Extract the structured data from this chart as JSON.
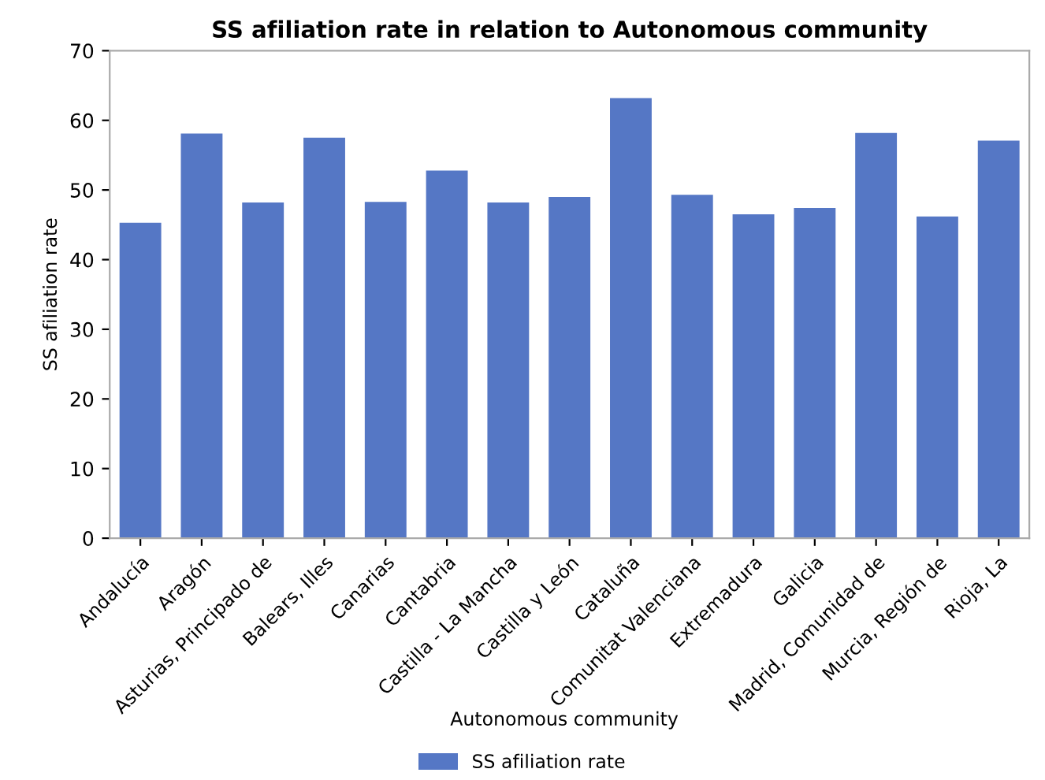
{
  "chart_data": {
    "type": "bar",
    "title": "SS afiliation rate in relation to Autonomous community",
    "xlabel": "Autonomous community",
    "ylabel": "SS afiliation rate",
    "categories": [
      "Andalucía",
      "Aragón",
      "Asturias, Principado de",
      "Balears, Illes",
      "Canarias",
      "Cantabria",
      "Castilla - La Mancha",
      "Castilla y León",
      "Cataluña",
      "Comunitat Valenciana",
      "Extremadura",
      "Galicia",
      "Madrid, Comunidad de",
      "Murcia, Región de",
      "Rioja, La"
    ],
    "series": [
      {
        "name": "SS afiliation rate",
        "color": "#5577c5",
        "values": [
          45.3,
          58.1,
          48.2,
          57.5,
          48.3,
          52.8,
          48.2,
          49.0,
          63.2,
          49.3,
          46.5,
          47.4,
          58.2,
          46.2,
          57.1
        ]
      }
    ],
    "ylim": [
      0,
      70
    ],
    "yticks": [
      0,
      10,
      20,
      30,
      40,
      50,
      60,
      70
    ],
    "grid": false,
    "legend": "bottom"
  }
}
